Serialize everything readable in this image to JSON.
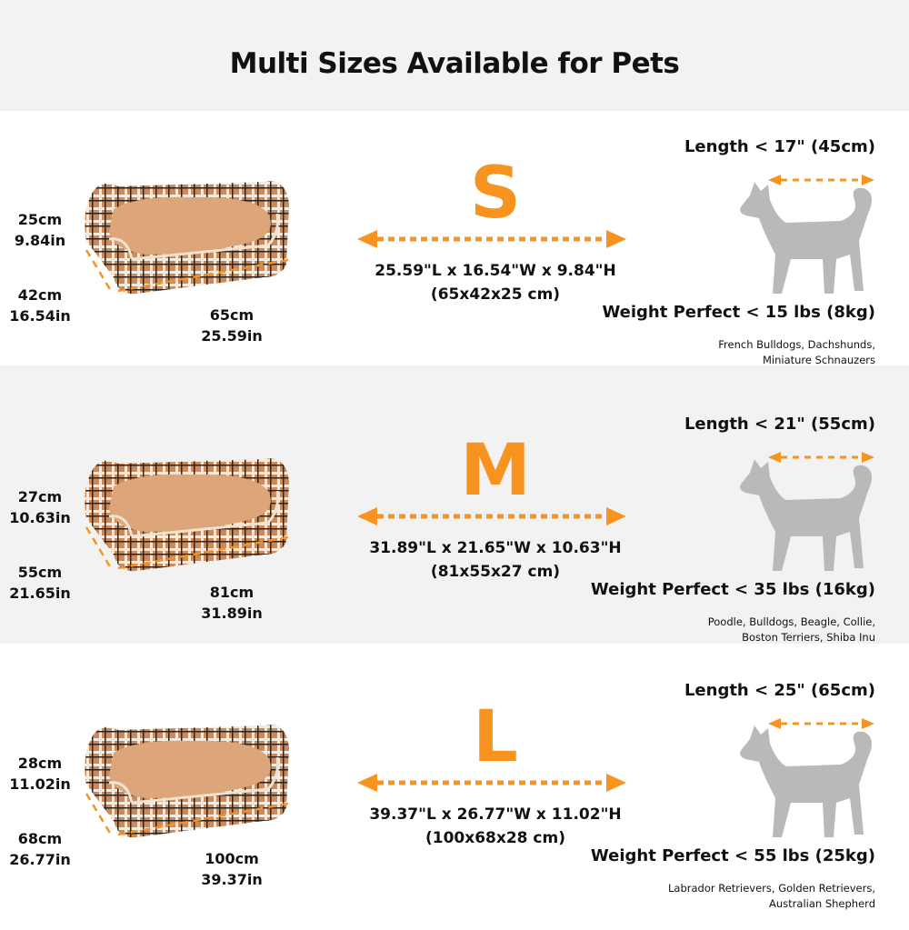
{
  "title": "Multi Sizes Available for Pets",
  "colors": {
    "accent": "#f7931e",
    "silhouette": "#b9b9b9",
    "band": "#f2f2f2"
  },
  "sizes": [
    {
      "letter": "S",
      "dims_in": "25.59\"L x 16.54\"W x 9.84\"H",
      "dims_cm": "(65x42x25 cm)",
      "height_cm": "25cm",
      "height_in": "9.84in",
      "width_cm": "42cm",
      "width_in": "16.54in",
      "length_cm": "65cm",
      "length_in": "25.59in",
      "pet_length": "Length < 17\" (45cm)",
      "weight": "Weight Perfect < 15 lbs (8kg)",
      "breeds_1": "French Bulldogs, Dachshunds,",
      "breeds_2": "Miniature Schnauzers",
      "dog_icon": "husky-silhouette"
    },
    {
      "letter": "M",
      "dims_in": "31.89\"L x 21.65\"W x 10.63\"H",
      "dims_cm": "(81x55x27 cm)",
      "height_cm": "27cm",
      "height_in": "10.63in",
      "width_cm": "55cm",
      "width_in": "21.65in",
      "length_cm": "81cm",
      "length_in": "31.89in",
      "pet_length": "Length < 21\" (55cm)",
      "weight": "Weight Perfect < 35 lbs (16kg)",
      "breeds_1": "Poodle, Bulldogs, Beagle, Collie,",
      "breeds_2": "Boston Terriers, Shiba Inu",
      "dog_icon": "collie-silhouette"
    },
    {
      "letter": "L",
      "dims_in": "39.37\"L x 26.77\"W x 11.02\"H",
      "dims_cm": "(100x68x28 cm)",
      "height_cm": "28cm",
      "height_in": "11.02in",
      "width_cm": "68cm",
      "width_in": "26.77in",
      "length_cm": "100cm",
      "length_in": "39.37in",
      "pet_length": "Length < 25\" (65cm)",
      "weight": "Weight Perfect < 55 lbs (25kg)",
      "breeds_1": "Labrador Retrievers, Golden Retrievers,",
      "breeds_2": "Australian Shepherd",
      "dog_icon": "chow-silhouette"
    }
  ]
}
